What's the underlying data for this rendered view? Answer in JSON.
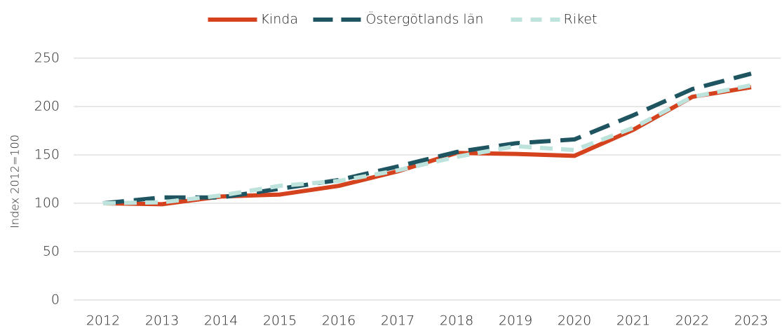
{
  "chart_data": {
    "type": "line",
    "y_label": "Index 2012=100",
    "categories": [
      "2012",
      "2013",
      "2014",
      "2015",
      "2016",
      "2017",
      "2018",
      "2019",
      "2020",
      "2021",
      "2022",
      "2023"
    ],
    "series": [
      {
        "name": "Kinda",
        "color": "#d4421e",
        "dash": "solid",
        "values": [
          100,
          99,
          107,
          109,
          118,
          133,
          152,
          151,
          149,
          176,
          210,
          220
        ]
      },
      {
        "name": "Östergötlands län",
        "color": "#1f5560",
        "dash": "long",
        "values": [
          100,
          106,
          106,
          115,
          124,
          138,
          153,
          162,
          166,
          191,
          218,
          234
        ]
      },
      {
        "name": "Riket",
        "color": "#bde3dc",
        "dash": "short",
        "values": [
          100,
          101,
          108,
          118,
          123,
          134,
          148,
          159,
          155,
          178,
          210,
          222
        ]
      }
    ],
    "ylim": [
      0,
      250
    ],
    "yticks": [
      0,
      50,
      100,
      150,
      200,
      250
    ],
    "grid": true,
    "legend": "top"
  }
}
